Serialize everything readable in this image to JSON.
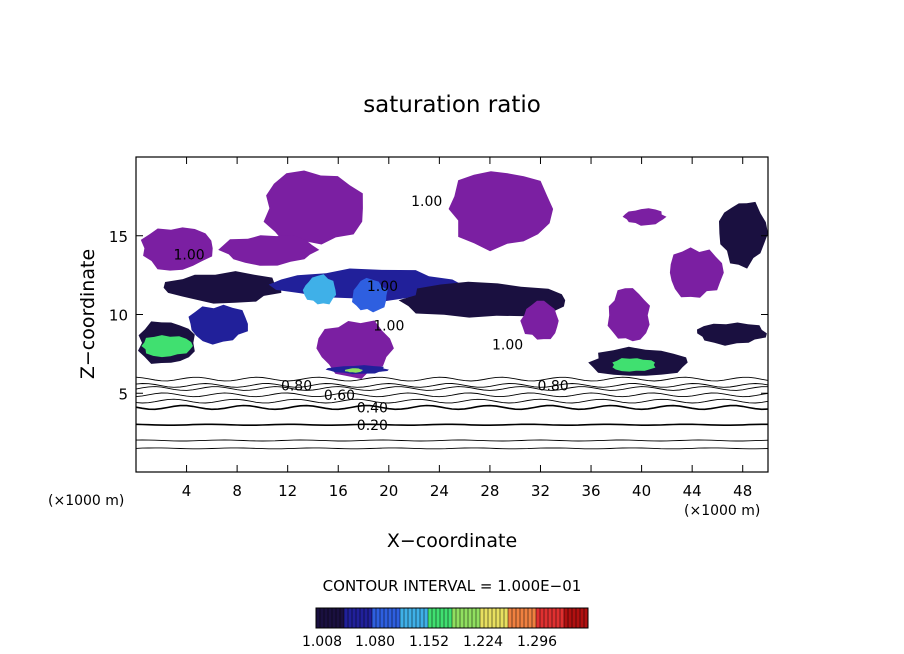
{
  "chart_data": {
    "type": "heatmap",
    "title": "saturation ratio",
    "xlabel": "X−coordinate",
    "ylabel": "Z−coordinate",
    "x_unit_left": "(×1000 m)",
    "x_unit_right": "(×1000 m)",
    "xlim": [
      0,
      50
    ],
    "ylim": [
      0,
      20
    ],
    "x_ticks": [
      4,
      8,
      12,
      16,
      20,
      24,
      28,
      32,
      36,
      40,
      44,
      48
    ],
    "y_ticks": [
      5,
      10,
      15
    ],
    "contour_interval_text": "CONTOUR INTERVAL = 1.000E−01",
    "colorbar": {
      "min": 1.0,
      "max": 1.33,
      "labels": [
        "1.008",
        "1.080",
        "1.152",
        "1.224",
        "1.296"
      ],
      "colors": [
        "#1a1040",
        "#21209a",
        "#2e5fe0",
        "#3fb0e8",
        "#40e070",
        "#90e060",
        "#e8e060",
        "#f08040",
        "#e03030",
        "#b01010"
      ]
    },
    "contour_labels": [
      {
        "x": 18.7,
        "y": 3.0,
        "text": "0.20"
      },
      {
        "x": 18.7,
        "y": 4.1,
        "text": "0.40"
      },
      {
        "x": 16.1,
        "y": 4.9,
        "text": "0.60"
      },
      {
        "x": 12.7,
        "y": 5.5,
        "text": "0.80"
      },
      {
        "x": 33.0,
        "y": 5.5,
        "text": "0.80"
      },
      {
        "x": 29.4,
        "y": 8.1,
        "text": "1.00"
      },
      {
        "x": 23.0,
        "y": 17.2,
        "text": "1.00"
      },
      {
        "x": 4.2,
        "y": 13.8,
        "text": "1.00"
      },
      {
        "x": 19.5,
        "y": 11.8,
        "text": "1.00"
      },
      {
        "x": 20.0,
        "y": 9.3,
        "text": "1.00"
      }
    ],
    "supersaturated_regions": [
      {
        "x": [
          9.8,
          18.2
        ],
        "z": [
          14.0,
          19.5
        ],
        "level": 1.01
      },
      {
        "x": [
          24.5,
          33.0
        ],
        "z": [
          13.8,
          19.6
        ],
        "level": 1.01
      },
      {
        "x": [
          0.2,
          6.2
        ],
        "z": [
          12.6,
          15.8
        ],
        "level": 1.01
      },
      {
        "x": [
          6.5,
          14.5
        ],
        "z": [
          13.0,
          15.2
        ],
        "level": 1.01
      },
      {
        "x": [
          2.0,
          12.0
        ],
        "z": [
          10.6,
          12.8
        ],
        "level": 1.03
      },
      {
        "x": [
          10.5,
          26.0
        ],
        "z": [
          10.8,
          13.0
        ],
        "level": 1.04
      },
      {
        "x": [
          13.2,
          16.0
        ],
        "z": [
          10.5,
          12.6
        ],
        "level": 1.12
      },
      {
        "x": [
          17.0,
          20.0
        ],
        "z": [
          10.0,
          12.4
        ],
        "level": 1.09
      },
      {
        "x": [
          20.5,
          34.5
        ],
        "z": [
          9.6,
          12.2
        ],
        "level": 1.03
      },
      {
        "x": [
          0.0,
          4.8
        ],
        "z": [
          6.6,
          9.8
        ],
        "level": 1.02
      },
      {
        "x": [
          0.3,
          4.5
        ],
        "z": [
          7.2,
          8.8
        ],
        "level": 1.14
      },
      {
        "x": [
          4.0,
          9.0
        ],
        "z": [
          8.0,
          10.8
        ],
        "level": 1.04
      },
      {
        "x": [
          14.2,
          20.4
        ],
        "z": [
          5.8,
          9.9
        ],
        "level": 1.01
      },
      {
        "x": [
          15.0,
          20.2
        ],
        "z": [
          6.2,
          6.8
        ],
        "level": 1.05
      },
      {
        "x": [
          16.5,
          18.0
        ],
        "z": [
          6.3,
          6.6
        ],
        "level": 1.18
      },
      {
        "x": [
          30.4,
          33.6
        ],
        "z": [
          8.2,
          11.0
        ],
        "level": 1.01
      },
      {
        "x": [
          37.2,
          40.8
        ],
        "z": [
          8.0,
          11.9
        ],
        "level": 1.01
      },
      {
        "x": [
          35.6,
          43.8
        ],
        "z": [
          5.9,
          8.0
        ],
        "level": 1.03
      },
      {
        "x": [
          37.5,
          41.2
        ],
        "z": [
          6.3,
          7.3
        ],
        "level": 1.14
      },
      {
        "x": [
          42.0,
          46.5
        ],
        "z": [
          10.8,
          14.5
        ],
        "level": 1.01
      },
      {
        "x": [
          44.2,
          50.0
        ],
        "z": [
          8.0,
          9.6
        ],
        "level": 1.03
      },
      {
        "x": [
          46.0,
          50.0
        ],
        "z": [
          12.8,
          17.5
        ],
        "level": 1.02
      },
      {
        "x": [
          38.5,
          42.0
        ],
        "z": [
          15.6,
          16.8
        ],
        "level": 1.01
      }
    ]
  }
}
